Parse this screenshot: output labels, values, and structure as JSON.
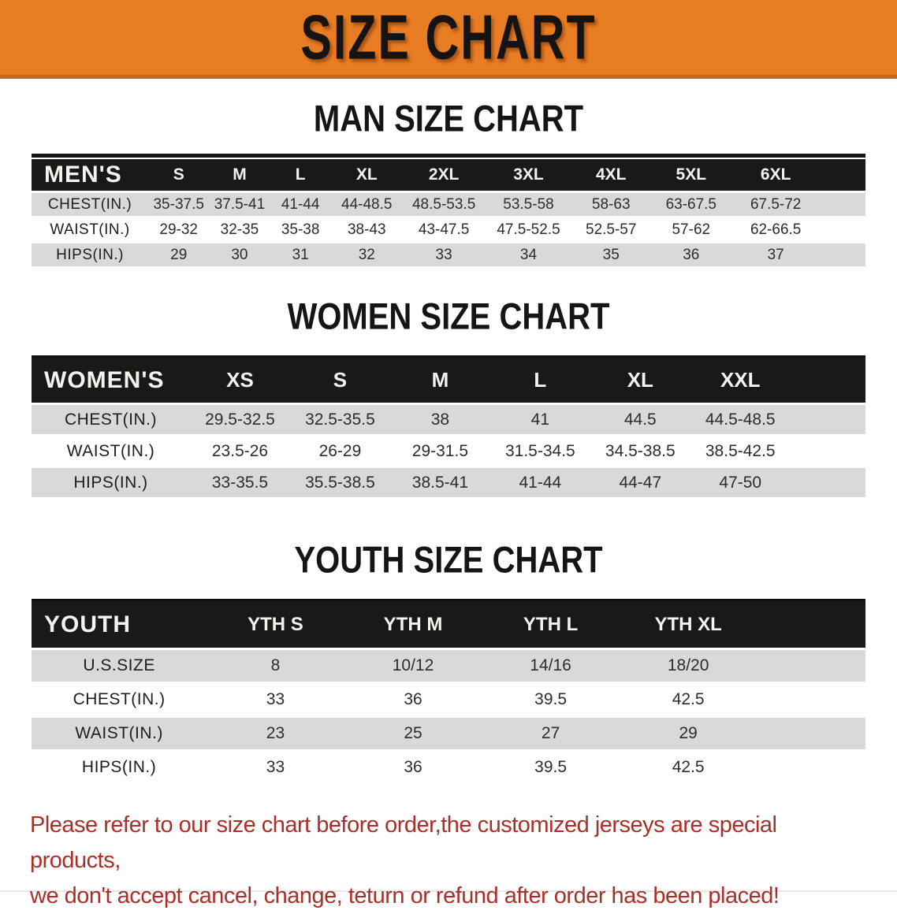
{
  "banner": {
    "title": "SIZE CHART",
    "background": "#E97D24",
    "border": "#C76A1E"
  },
  "colors": {
    "header_bar": "#1B1918",
    "row_gray": "#D9D9D9",
    "row_white": "#FFFFFF",
    "disclaimer_red": "#A93028"
  },
  "men": {
    "heading": "MAN SIZE CHART",
    "header": [
      "MEN'S",
      "S",
      "M",
      "L",
      "XL",
      "2XL",
      "3XL",
      "4XL",
      "5XL",
      "6XL"
    ],
    "rows": [
      {
        "label": "CHEST(IN.)",
        "values": [
          "35-37.5",
          "37.5-41",
          "41-44",
          "44-48.5",
          "48.5-53.5",
          "53.5-58",
          "58-63",
          "63-67.5",
          "67.5-72"
        ]
      },
      {
        "label": "WAIST(IN.)",
        "values": [
          "29-32",
          "32-35",
          "35-38",
          "38-43",
          "43-47.5",
          "47.5-52.5",
          "52.5-57",
          "57-62",
          "62-66.5"
        ]
      },
      {
        "label": "HIPS(IN.)",
        "values": [
          "29",
          "30",
          "31",
          "32",
          "33",
          "34",
          "35",
          "36",
          "37"
        ]
      }
    ]
  },
  "women": {
    "heading": "WOMEN SIZE CHART",
    "header": [
      "WOMEN'S",
      "XS",
      "S",
      "M",
      "L",
      "XL",
      "XXL"
    ],
    "rows": [
      {
        "label": "CHEST(IN.)",
        "values": [
          "29.5-32.5",
          "32.5-35.5",
          "38",
          "41",
          "44.5",
          "44.5-48.5"
        ]
      },
      {
        "label": "WAIST(IN.)",
        "values": [
          "23.5-26",
          "26-29",
          "29-31.5",
          "31.5-34.5",
          "34.5-38.5",
          "38.5-42.5"
        ]
      },
      {
        "label": "HIPS(IN.)",
        "values": [
          "33-35.5",
          "35.5-38.5",
          "38.5-41",
          "41-44",
          "44-47",
          "47-50"
        ]
      }
    ]
  },
  "youth": {
    "heading": "YOUTH SIZE CHART",
    "header": [
      "YOUTH",
      "YTH S",
      "YTH M",
      "YTH L",
      "YTH XL"
    ],
    "rows": [
      {
        "label": "U.S.SIZE",
        "values": [
          "8",
          "10/12",
          "14/16",
          "18/20"
        ]
      },
      {
        "label": "CHEST(IN.)",
        "values": [
          "33",
          "36",
          "39.5",
          "42.5"
        ]
      },
      {
        "label": "WAIST(IN.)",
        "values": [
          "23",
          "25",
          "27",
          "29"
        ]
      },
      {
        "label": "HIPS(IN.)",
        "values": [
          "33",
          "36",
          "39.5",
          "42.5"
        ]
      }
    ]
  },
  "disclaimer": {
    "line1": "Please refer to our size chart before order,the customized jerseys are special products,",
    "line2": "we don't accept cancel, change, teturn or refund after order has been placed!"
  }
}
